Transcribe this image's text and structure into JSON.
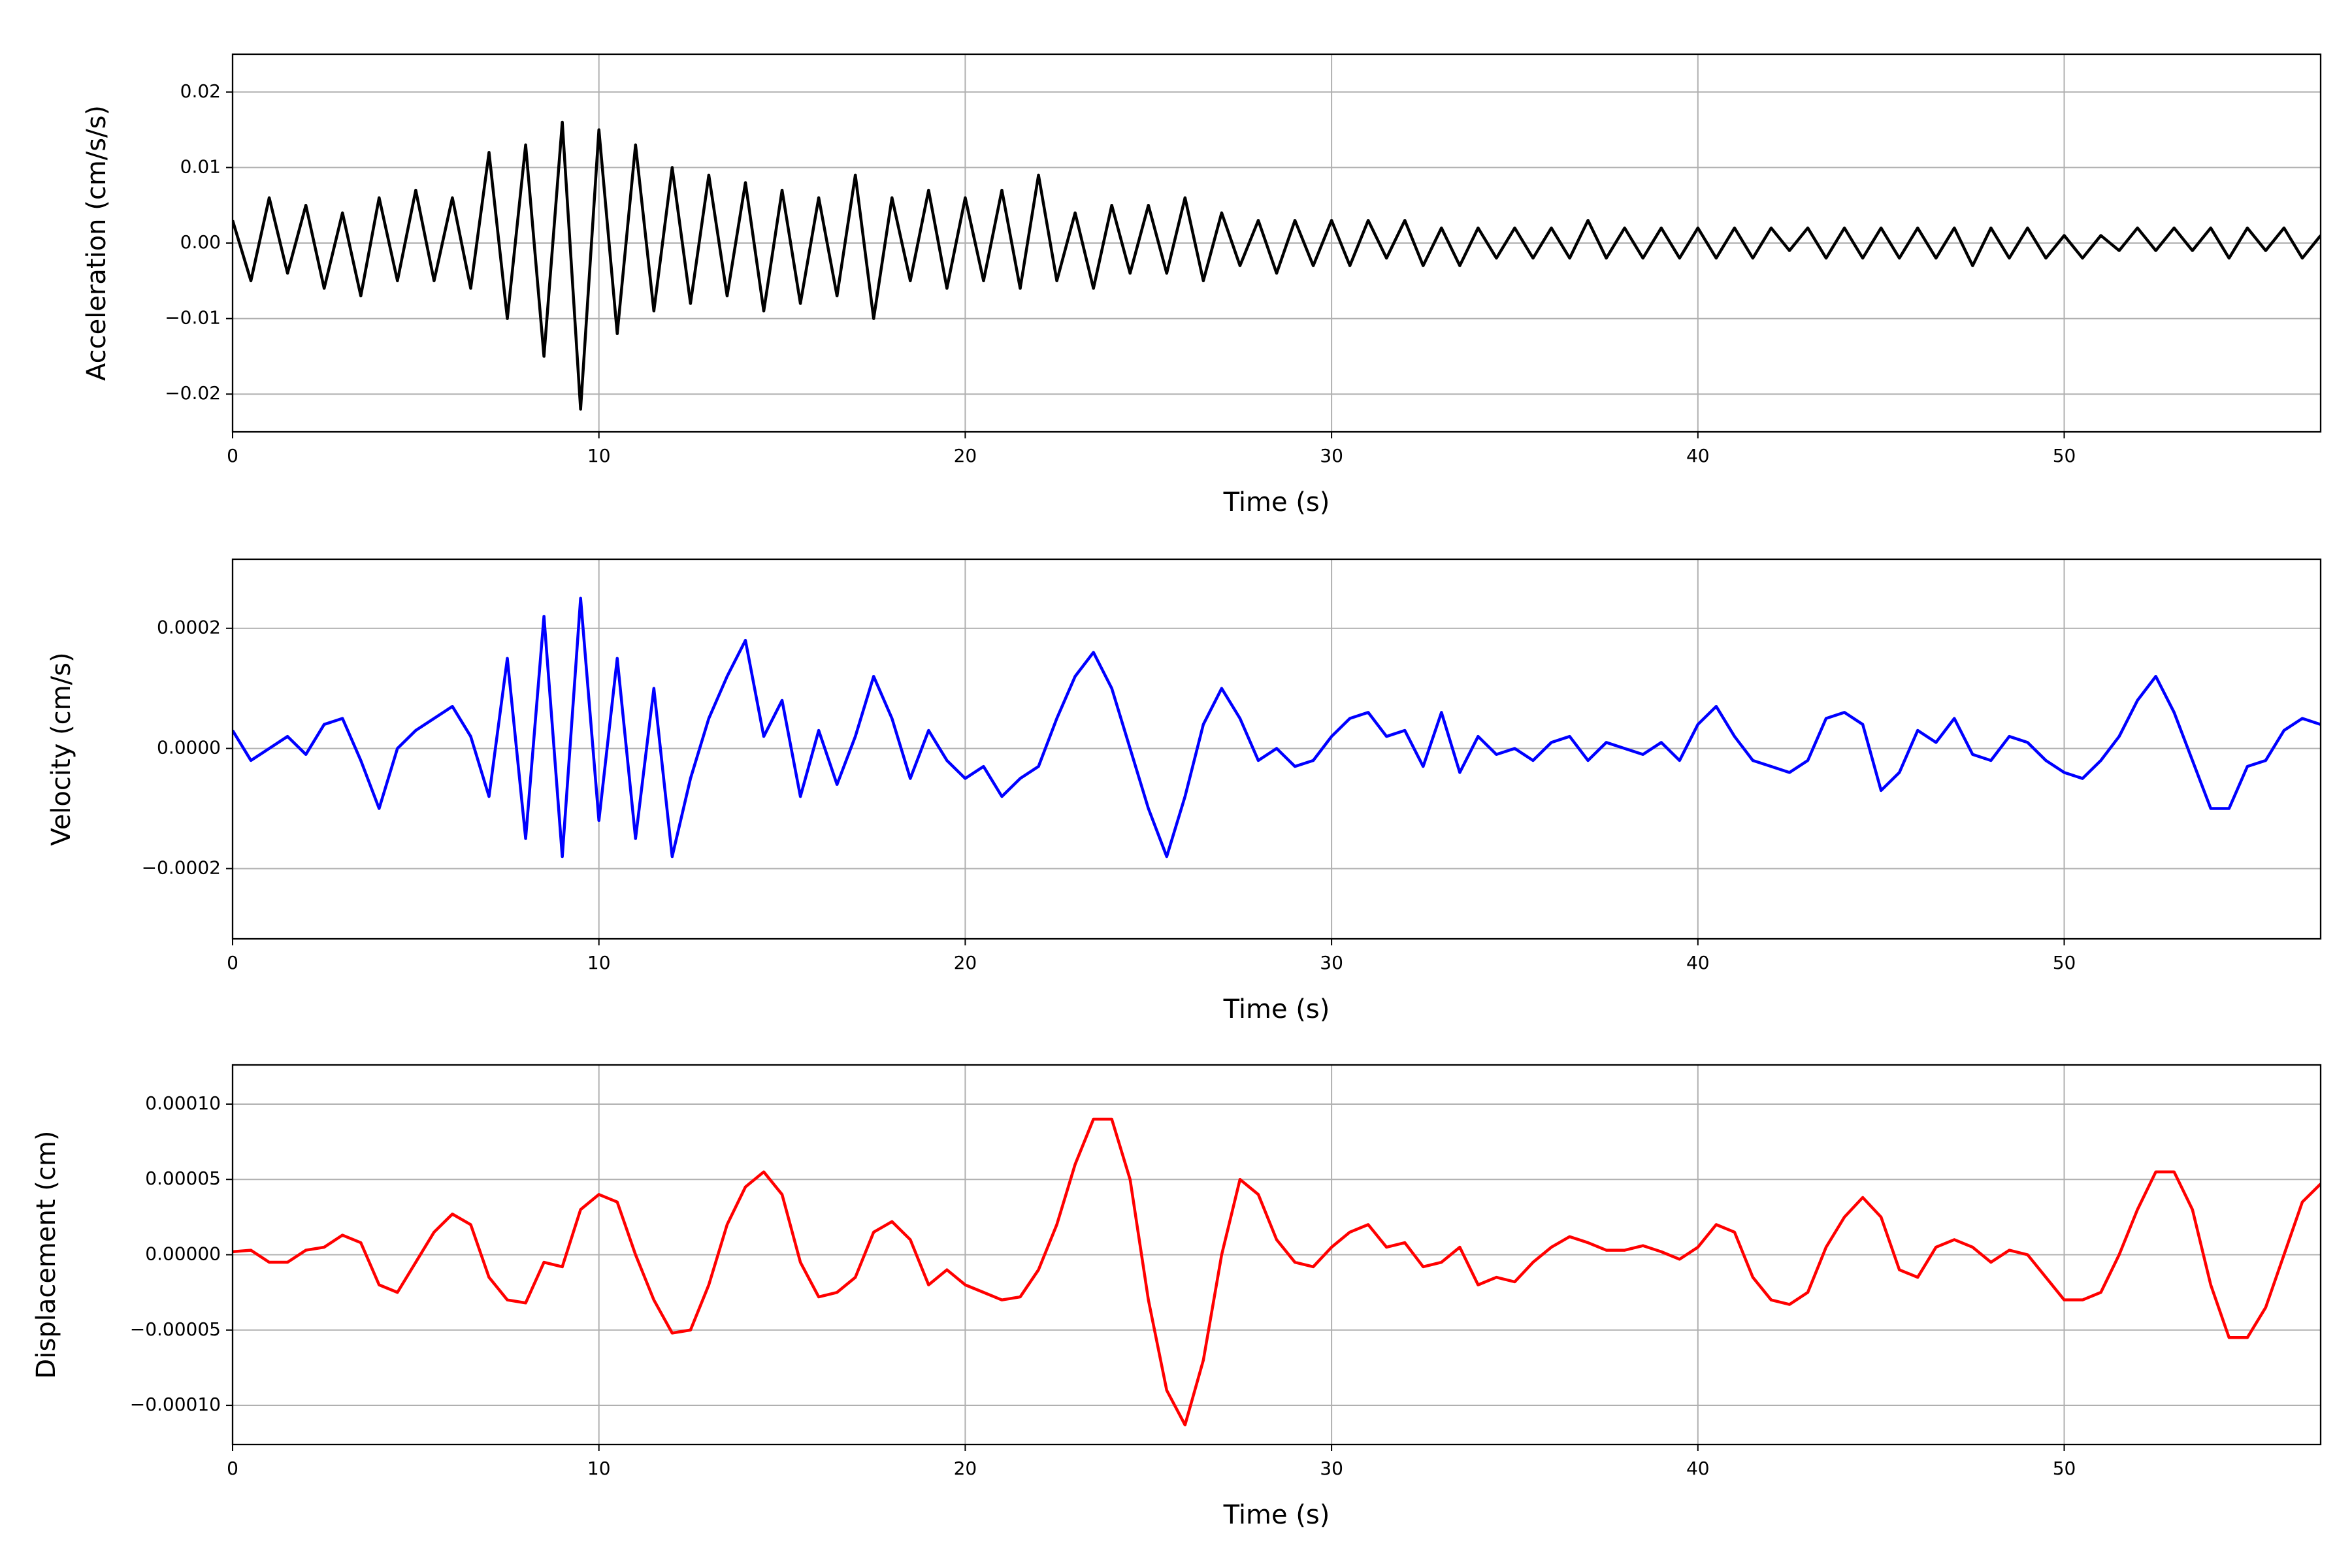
{
  "chart_data": [
    {
      "type": "line",
      "x_label": "Time (s)",
      "y_label": "Acceleration (cm/s/s)",
      "color": "#000000",
      "grid": true,
      "xlim": [
        0,
        57
      ],
      "xticks": [
        0,
        10,
        20,
        30,
        40,
        50
      ],
      "ylim": [
        -0.025,
        0.025
      ],
      "yticks": [
        {
          "value": -0.02,
          "label": "−0.02"
        },
        {
          "value": -0.01,
          "label": "−0.01"
        },
        {
          "value": 0,
          "label": "0.00"
        },
        {
          "value": 0.01,
          "label": "0.01"
        },
        {
          "value": 0.02,
          "label": "0.02"
        }
      ],
      "x": [
        0,
        0.5,
        1,
        1.5,
        2,
        2.5,
        3,
        3.5,
        4,
        4.5,
        5,
        5.5,
        6,
        6.5,
        7,
        7.5,
        8,
        8.5,
        9,
        9.5,
        10,
        10.5,
        11,
        11.5,
        12,
        12.5,
        13,
        13.5,
        14,
        14.5,
        15,
        15.5,
        16,
        16.5,
        17,
        17.5,
        18,
        18.5,
        19,
        19.5,
        20,
        20.5,
        21,
        21.5,
        22,
        22.5,
        23,
        23.5,
        24,
        24.5,
        25,
        25.5,
        26,
        26.5,
        27,
        27.5,
        28,
        28.5,
        29,
        29.5,
        30,
        30.5,
        31,
        31.5,
        32,
        32.5,
        33,
        33.5,
        34,
        34.5,
        35,
        35.5,
        36,
        36.5,
        37,
        37.5,
        38,
        38.5,
        39,
        39.5,
        40,
        40.5,
        41,
        41.5,
        42,
        42.5,
        43,
        43.5,
        44,
        44.5,
        45,
        45.5,
        46,
        46.5,
        47,
        47.5,
        48,
        48.5,
        49,
        49.5,
        50,
        50.5,
        51,
        51.5,
        52,
        52.5,
        53,
        53.5,
        54,
        54.5,
        55,
        55.5,
        56,
        56.5,
        57
      ],
      "values": [
        0.003,
        -0.005,
        0.006,
        -0.004,
        0.005,
        -0.006,
        0.004,
        -0.007,
        0.006,
        -0.005,
        0.007,
        -0.005,
        0.006,
        -0.006,
        0.012,
        -0.01,
        0.013,
        -0.015,
        0.016,
        -0.022,
        0.015,
        -0.012,
        0.013,
        -0.009,
        0.01,
        -0.008,
        0.009,
        -0.007,
        0.008,
        -0.009,
        0.007,
        -0.008,
        0.006,
        -0.007,
        0.009,
        -0.01,
        0.006,
        -0.005,
        0.007,
        -0.006,
        0.006,
        -0.005,
        0.007,
        -0.006,
        0.009,
        -0.005,
        0.004,
        -0.006,
        0.005,
        -0.004,
        0.005,
        -0.004,
        0.006,
        -0.005,
        0.004,
        -0.003,
        0.003,
        -0.004,
        0.003,
        -0.003,
        0.003,
        -0.003,
        0.003,
        -0.002,
        0.003,
        -0.003,
        0.002,
        -0.003,
        0.002,
        -0.002,
        0.002,
        -0.002,
        0.002,
        -0.002,
        0.003,
        -0.002,
        0.002,
        -0.002,
        0.002,
        -0.002,
        0.002,
        -0.002,
        0.002,
        -0.002,
        0.002,
        -0.001,
        0.002,
        -0.002,
        0.002,
        -0.002,
        0.002,
        -0.002,
        0.002,
        -0.002,
        0.002,
        -0.003,
        0.002,
        -0.002,
        0.002,
        -0.002,
        0.001,
        -0.002,
        0.001,
        -0.001,
        0.002,
        -0.001,
        0.002,
        -0.001,
        0.002,
        -0.002,
        0.002,
        -0.001,
        0.002,
        -0.002,
        0.001
      ]
    },
    {
      "type": "line",
      "x_label": "Time (s)",
      "y_label": "Velocity (cm/s)",
      "color": "#0000ff",
      "grid": true,
      "xlim": [
        0,
        57
      ],
      "xticks": [
        0,
        10,
        20,
        30,
        40,
        50
      ],
      "ylim": [
        -0.000317,
        0.000315
      ],
      "yticks": [
        {
          "value": -0.0002,
          "label": "−0.0002"
        },
        {
          "value": 0,
          "label": "0.0000"
        },
        {
          "value": 0.0002,
          "label": "0.0002"
        }
      ],
      "x": [
        0,
        0.5,
        1,
        1.5,
        2,
        2.5,
        3,
        3.5,
        4,
        4.5,
        5,
        5.5,
        6,
        6.5,
        7,
        7.5,
        8,
        8.5,
        9,
        9.5,
        10,
        10.5,
        11,
        11.5,
        12,
        12.5,
        13,
        13.5,
        14,
        14.5,
        15,
        15.5,
        16,
        16.5,
        17,
        17.5,
        18,
        18.5,
        19,
        19.5,
        20,
        20.5,
        21,
        21.5,
        22,
        22.5,
        23,
        23.5,
        24,
        24.5,
        25,
        25.5,
        26,
        26.5,
        27,
        27.5,
        28,
        28.5,
        29,
        29.5,
        30,
        30.5,
        31,
        31.5,
        32,
        32.5,
        33,
        33.5,
        34,
        34.5,
        35,
        35.5,
        36,
        36.5,
        37,
        37.5,
        38,
        38.5,
        39,
        39.5,
        40,
        40.5,
        41,
        41.5,
        42,
        42.5,
        43,
        43.5,
        44,
        44.5,
        45,
        45.5,
        46,
        46.5,
        47,
        47.5,
        48,
        48.5,
        49,
        49.5,
        50,
        50.5,
        51,
        51.5,
        52,
        52.5,
        53,
        53.5,
        54,
        54.5,
        55,
        55.5,
        56,
        56.5,
        57
      ],
      "values": [
        3e-05,
        -2e-05,
        0.0,
        2e-05,
        -1e-05,
        4e-05,
        5e-05,
        -2e-05,
        -0.0001,
        0.0,
        3e-05,
        5e-05,
        7e-05,
        2e-05,
        -8e-05,
        0.00015,
        -0.00015,
        0.00022,
        -0.00018,
        0.00025,
        -0.00012,
        0.00015,
        -0.00015,
        0.0001,
        -0.00018,
        -5e-05,
        5e-05,
        0.00012,
        0.00018,
        2e-05,
        8e-05,
        -8e-05,
        3e-05,
        -6e-05,
        2e-05,
        0.00012,
        5e-05,
        -5e-05,
        3e-05,
        -2e-05,
        -5e-05,
        -3e-05,
        -8e-05,
        -5e-05,
        -3e-05,
        5e-05,
        0.00012,
        0.00016,
        0.0001,
        0.0,
        -0.0001,
        -0.00018,
        -8e-05,
        4e-05,
        0.0001,
        5e-05,
        -2e-05,
        0.0,
        -3e-05,
        -2e-05,
        2e-05,
        5e-05,
        6e-05,
        2e-05,
        3e-05,
        -3e-05,
        6e-05,
        -4e-05,
        2e-05,
        -1e-05,
        0.0,
        -2e-05,
        1e-05,
        2e-05,
        -2e-05,
        1e-05,
        0.0,
        -1e-05,
        1e-05,
        -2e-05,
        4e-05,
        7e-05,
        2e-05,
        -2e-05,
        -3e-05,
        -4e-05,
        -2e-05,
        5e-05,
        6e-05,
        4e-05,
        -7e-05,
        -4e-05,
        3e-05,
        1e-05,
        5e-05,
        -1e-05,
        -2e-05,
        2e-05,
        1e-05,
        -2e-05,
        -4e-05,
        -5e-05,
        -2e-05,
        2e-05,
        8e-05,
        0.00012,
        6e-05,
        -2e-05,
        -0.0001,
        -0.0001,
        -3e-05,
        -2e-05,
        3e-05,
        5e-05,
        4e-05
      ]
    },
    {
      "type": "line",
      "x_label": "Time (s)",
      "y_label": "Displacement (cm)",
      "color": "#ff0000",
      "grid": true,
      "xlim": [
        0,
        57
      ],
      "xticks": [
        0,
        10,
        20,
        30,
        40,
        50
      ],
      "ylim": [
        -0.000126,
        0.000126
      ],
      "yticks": [
        {
          "value": -0.0001,
          "label": "−0.00010"
        },
        {
          "value": -5e-05,
          "label": "−0.00005"
        },
        {
          "value": 0,
          "label": "0.00000"
        },
        {
          "value": 5e-05,
          "label": "0.00005"
        },
        {
          "value": 0.0001,
          "label": "0.00010"
        }
      ],
      "x": [
        0,
        0.5,
        1,
        1.5,
        2,
        2.5,
        3,
        3.5,
        4,
        4.5,
        5,
        5.5,
        6,
        6.5,
        7,
        7.5,
        8,
        8.5,
        9,
        9.5,
        10,
        10.5,
        11,
        11.5,
        12,
        12.5,
        13,
        13.5,
        14,
        14.5,
        15,
        15.5,
        16,
        16.5,
        17,
        17.5,
        18,
        18.5,
        19,
        19.5,
        20,
        20.5,
        21,
        21.5,
        22,
        22.5,
        23,
        23.5,
        24,
        24.5,
        25,
        25.5,
        26,
        26.5,
        27,
        27.5,
        28,
        28.5,
        29,
        29.5,
        30,
        30.5,
        31,
        31.5,
        32,
        32.5,
        33,
        33.5,
        34,
        34.5,
        35,
        35.5,
        36,
        36.5,
        37,
        37.5,
        38,
        38.5,
        39,
        39.5,
        40,
        40.5,
        41,
        41.5,
        42,
        42.5,
        43,
        43.5,
        44,
        44.5,
        45,
        45.5,
        46,
        46.5,
        47,
        47.5,
        48,
        48.5,
        49,
        49.5,
        50,
        50.5,
        51,
        51.5,
        52,
        52.5,
        53,
        53.5,
        54,
        54.5,
        55,
        55.5,
        56,
        56.5,
        57
      ],
      "values": [
        2e-06,
        3e-06,
        -5e-06,
        -5e-06,
        3e-06,
        5e-06,
        1.3e-05,
        8e-06,
        -2e-05,
        -2.5e-05,
        -5e-06,
        1.5e-05,
        2.7e-05,
        2e-05,
        -1.5e-05,
        -3e-05,
        -3.2e-05,
        -5e-06,
        -8e-06,
        3e-05,
        4e-05,
        3.5e-05,
        0.0,
        -3e-05,
        -5.2e-05,
        -5e-05,
        -2e-05,
        2e-05,
        4.5e-05,
        5.5e-05,
        4e-05,
        -5e-06,
        -2.8e-05,
        -2.5e-05,
        -1.5e-05,
        1.5e-05,
        2.2e-05,
        1e-05,
        -2e-05,
        -1e-05,
        -2e-05,
        -2.5e-05,
        -3e-05,
        -2.8e-05,
        -1e-05,
        2e-05,
        6e-05,
        9e-05,
        9e-05,
        5e-05,
        -3e-05,
        -9e-05,
        -0.000113,
        -7e-05,
        0.0,
        5e-05,
        4e-05,
        1e-05,
        -5e-06,
        -8e-06,
        5e-06,
        1.5e-05,
        2e-05,
        5e-06,
        8e-06,
        -8e-06,
        -5e-06,
        5e-06,
        -2e-05,
        -1.5e-05,
        -1.8e-05,
        -5e-06,
        5e-06,
        1.2e-05,
        8e-06,
        3e-06,
        3e-06,
        6e-06,
        2e-06,
        -3e-06,
        5e-06,
        2e-05,
        1.5e-05,
        -1.5e-05,
        -3e-05,
        -3.3e-05,
        -2.5e-05,
        5e-06,
        2.5e-05,
        3.8e-05,
        2.5e-05,
        -1e-05,
        -1.5e-05,
        5e-06,
        1e-05,
        5e-06,
        -5e-06,
        3e-06,
        0.0,
        -1.5e-05,
        -3e-05,
        -3e-05,
        -2.5e-05,
        0.0,
        3e-05,
        5.5e-05,
        5.5e-05,
        3e-05,
        -2e-05,
        -5.5e-05,
        -5.5e-05,
        -3.5e-05,
        0.0,
        3.5e-05,
        4.7e-05
      ]
    }
  ]
}
